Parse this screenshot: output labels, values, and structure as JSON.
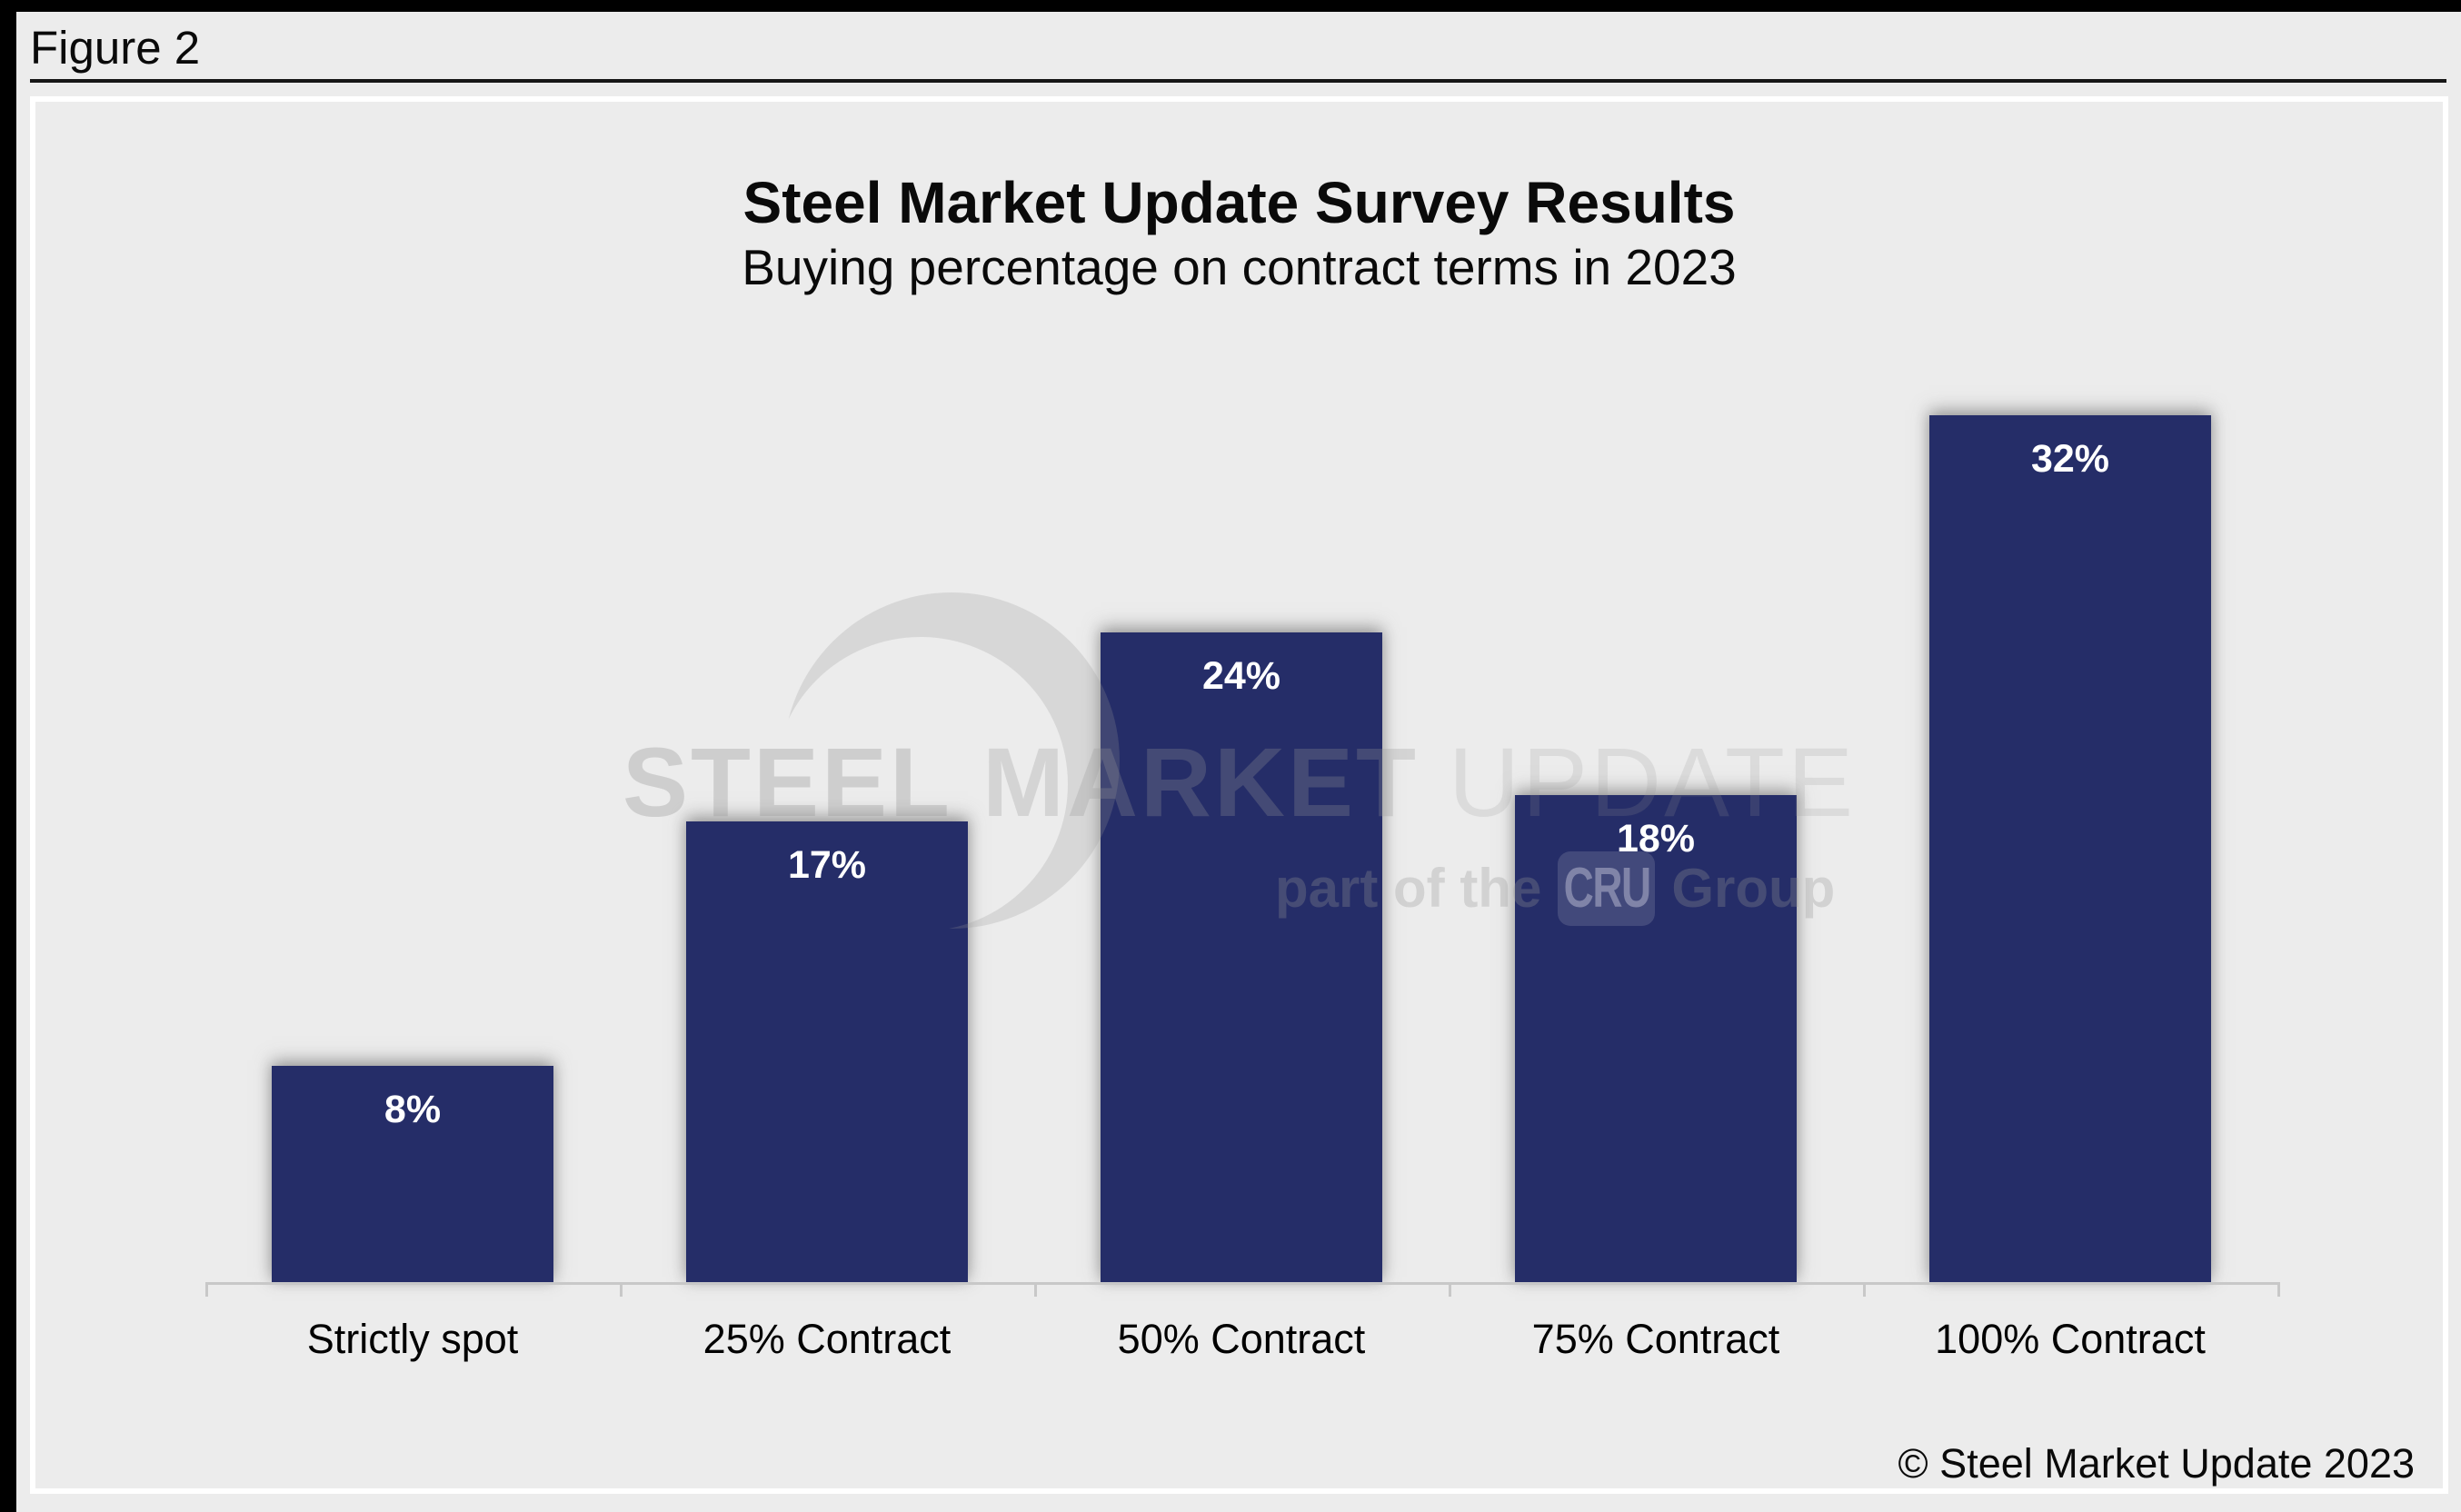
{
  "figure_label": "Figure 2",
  "chart_data": {
    "type": "bar",
    "title": "Steel Market Update Survey Results",
    "subtitle": "Buying percentage on contract terms in 2023",
    "categories": [
      "Strictly spot",
      "25% Contract",
      "50% Contract",
      "75% Contract",
      "100% Contract"
    ],
    "values": [
      8,
      17,
      24,
      18,
      32
    ],
    "value_labels": [
      "8%",
      "17%",
      "24%",
      "18%",
      "32%"
    ],
    "xlabel": "",
    "ylabel": "",
    "ylim": [
      0,
      40
    ],
    "grid": "off",
    "legend": "none",
    "bar_color": "#252D68",
    "value_label_color": "#FFFFFF",
    "axis_color": "#C8C8C8"
  },
  "watermark": {
    "brand_words": [
      "STEEL",
      "MARKET",
      "UPDATE"
    ],
    "tagline": {
      "prefix": "part of the",
      "badge": "CRU",
      "suffix": "Group"
    }
  },
  "footer": {
    "copyright": "© Steel Market Update 2023"
  }
}
